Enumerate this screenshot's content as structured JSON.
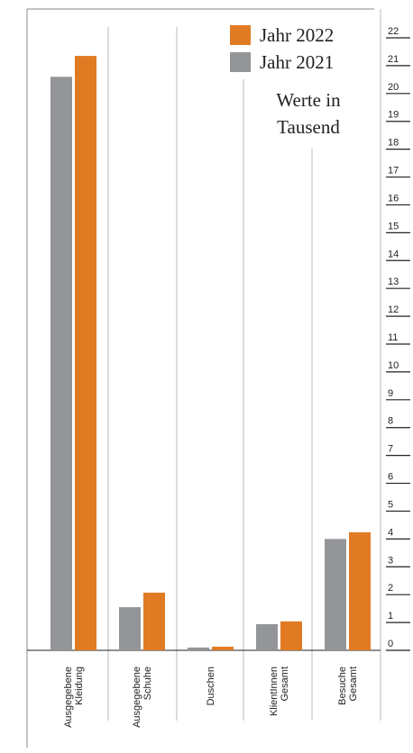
{
  "chart_data": {
    "type": "bar",
    "categories": [
      "Ausgegebene Kleidung",
      "Ausgegebene Schuhe",
      "Duschen",
      "KlientInnen Gesamt",
      "Besuche Gesamt"
    ],
    "series": [
      {
        "name": "Jahr 2021",
        "color": "#939598",
        "values": [
          20.6,
          1.55,
          0.1,
          0.94,
          4.0
        ]
      },
      {
        "name": "Jahr 2022",
        "color": "#e07b24",
        "values": [
          21.35,
          2.07,
          0.13,
          1.04,
          4.24
        ]
      }
    ],
    "annotation": [
      "Werte in",
      "Tausend"
    ],
    "ylim": [
      0,
      22
    ],
    "yticks": [
      0,
      1,
      2,
      3,
      4,
      5,
      6,
      7,
      8,
      9,
      10,
      11,
      12,
      13,
      14,
      15,
      16,
      17,
      18,
      19,
      20,
      21,
      22
    ],
    "legend": "top-right"
  }
}
